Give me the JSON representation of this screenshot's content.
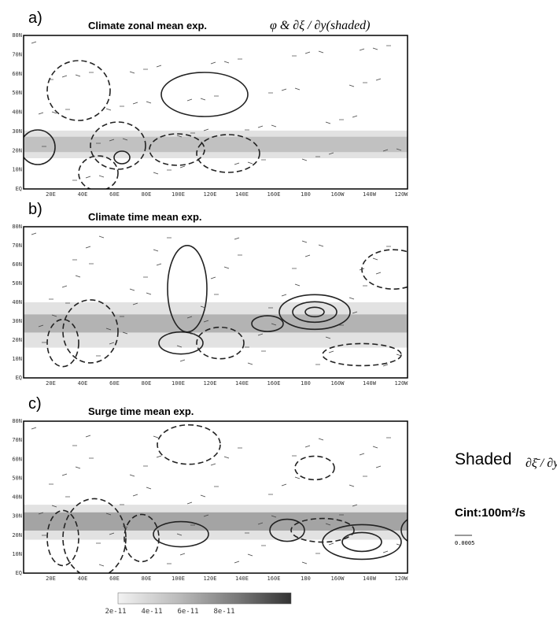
{
  "panels": [
    {
      "label": "a)",
      "title": "Climate zonal mean exp.",
      "annotation": "φ & ∂ξ / ∂y(shaded)"
    },
    {
      "label": "b)",
      "title": "Climate time mean exp."
    },
    {
      "label": "c)",
      "title": "Surge time mean exp."
    }
  ],
  "lat_labels": [
    "80N",
    "70N",
    "60N",
    "50N",
    "40N",
    "30N",
    "20N",
    "10N",
    "EQ"
  ],
  "lon_labels": [
    "20E",
    "40E",
    "60E",
    "80E",
    "100E",
    "120E",
    "140E",
    "160E",
    "180",
    "160W",
    "140W",
    "120W"
  ],
  "legend": {
    "shaded_label": "Shaded",
    "shaded_symbol": "∂ξ̄ / ∂y",
    "contour_interval": "Cint:100m²/s",
    "vector_scale": "0.0005"
  },
  "colorbar": {
    "labels": [
      "2e-11",
      "4e-11",
      "6e-11",
      "8e-11"
    ]
  }
}
